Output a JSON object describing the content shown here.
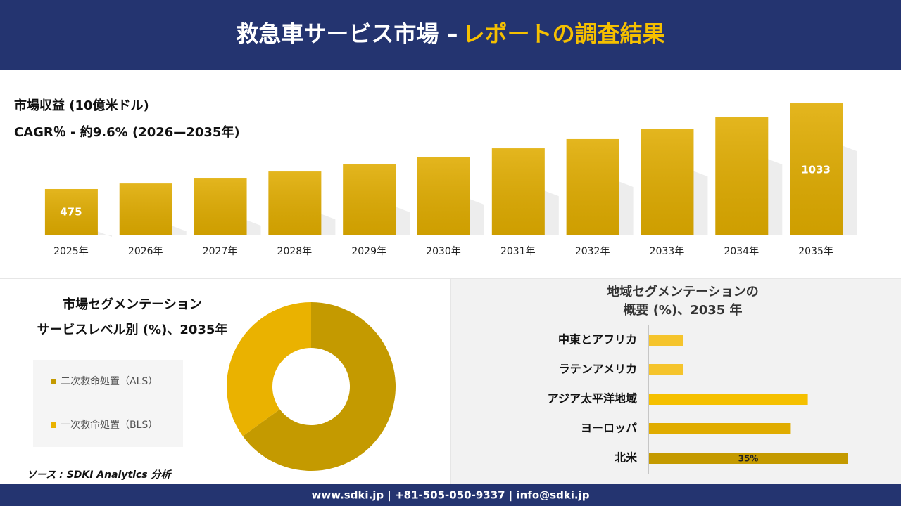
{
  "header": {
    "title": "救急車サービス市場 –",
    "title_highlight": "レポートの調査結果"
  },
  "chart_data": [
    {
      "type": "bar",
      "title": "市場収益 (10億米ドル)",
      "subtitle": "CAGR％ - 約9.6% (2026—2035年)",
      "categories": [
        "2025年",
        "2026年",
        "2027年",
        "2028年",
        "2029年",
        "2030年",
        "2031年",
        "2032年",
        "2033年",
        "2034年",
        "2035年"
      ],
      "values": [
        475,
        511,
        548,
        589,
        635,
        685,
        740,
        800,
        868,
        946,
        1033
      ],
      "color": "#e0ac00",
      "ylim": [
        173,
        1088
      ]
    },
    {
      "type": "donut",
      "title": "市場セグメンテーション",
      "subtitle": "サービスレベル別 (%)、2035年",
      "categories": [
        "二次救命処置（ALS）",
        "一次救命処置（BLS）"
      ],
      "values": [
        65,
        35
      ],
      "colors": [
        "#c49a00",
        "#eab200"
      ],
      "legend": "left"
    },
    {
      "type": "hbar",
      "title": "地域セグメンテーションの",
      "subtitle": "概要 (%)、2035 年",
      "categories": [
        "中東とアフリカ",
        "ラテンアメリカ",
        "アジア太平洋地域",
        "ヨーロッパ",
        "北米"
      ],
      "values": [
        6,
        6,
        28,
        25,
        35
      ],
      "value_labels": [
        null,
        null,
        null,
        null,
        "35%"
      ],
      "colors": [
        "#f5c42c",
        "#f5c42c",
        "#f5c000",
        "#e0ac00",
        "#c49a00"
      ],
      "xlim": [
        0,
        35
      ]
    }
  ],
  "source": "ソース : SDKI Analytics 分析",
  "footer": "www.sdki.jp | +81-505-050-9337 | info@sdki.jp"
}
